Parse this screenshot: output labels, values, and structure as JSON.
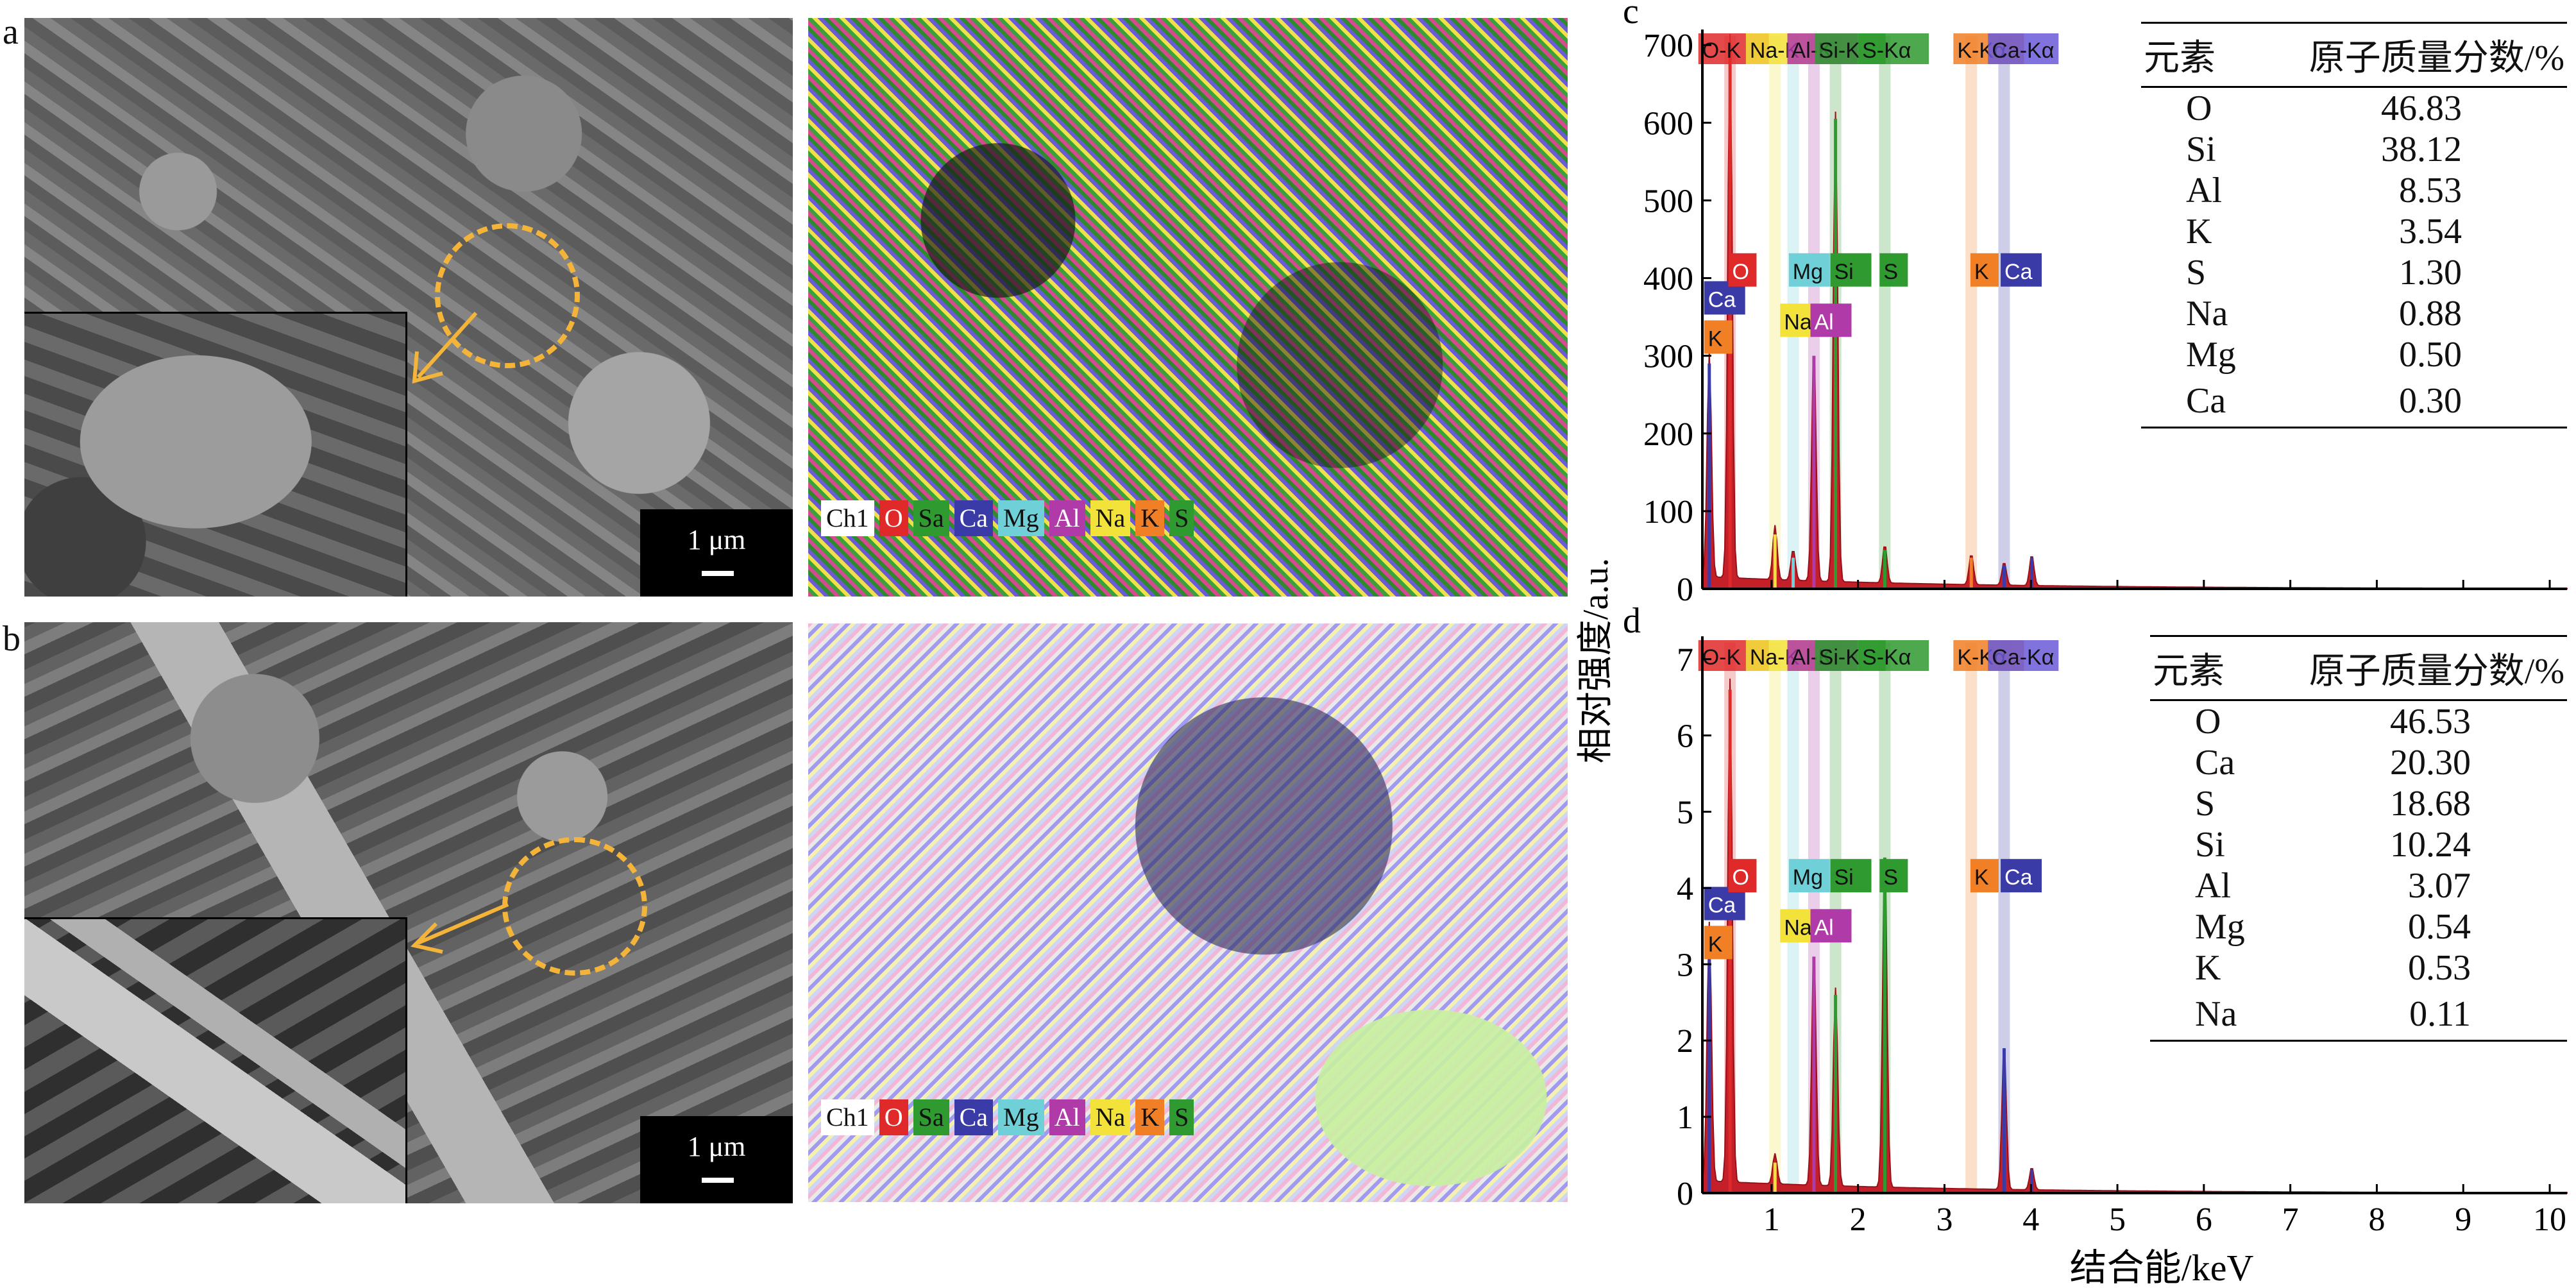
{
  "panels": {
    "a": "a",
    "b": "b",
    "c": "c",
    "d": "d"
  },
  "scale": "1 μm",
  "eds_legend": {
    "items": [
      {
        "label": "Ch1",
        "color": "#ffffff",
        "text": "#111111"
      },
      {
        "label": "O",
        "color": "#e02a2a",
        "text": "#ffffff"
      },
      {
        "label": "Sa",
        "color": "#2f9a2f",
        "text": "#111111"
      },
      {
        "label": "Ca",
        "color": "#3b3ba8",
        "text": "#ffffff"
      },
      {
        "label": "Mg",
        "color": "#6fd0d8",
        "text": "#111111"
      },
      {
        "label": "Al",
        "color": "#b03aa8",
        "text": "#ffffff"
      },
      {
        "label": "Na",
        "color": "#f2e23a",
        "text": "#111111"
      },
      {
        "label": "K",
        "color": "#f07f26",
        "text": "#111111"
      },
      {
        "label": "S",
        "color": "#2f9a2f",
        "text": "#111111"
      }
    ]
  },
  "chart_data": [
    {
      "type": "line",
      "panel": "c",
      "xlabel": "结合能/keV",
      "ylabel": "相对强度/a.u.",
      "xlim": [
        0.2,
        10.2
      ],
      "ylim": [
        0,
        720
      ],
      "yticks": [
        0,
        100,
        200,
        300,
        400,
        500,
        600,
        700
      ],
      "xticks": [
        1,
        2,
        3,
        4,
        5,
        6,
        7,
        8,
        9,
        10
      ],
      "peaks": [
        {
          "x": 0.28,
          "y": 290,
          "color": "#3b3ba8"
        },
        {
          "x": 0.52,
          "y": 700,
          "color": "#e02a2a"
        },
        {
          "x": 1.04,
          "y": 70,
          "color": "#f2e23a"
        },
        {
          "x": 1.25,
          "y": 40,
          "color": "#6fd0d8"
        },
        {
          "x": 1.49,
          "y": 300,
          "color": "#b03aa8"
        },
        {
          "x": 1.74,
          "y": 605,
          "color": "#2f9a2f"
        },
        {
          "x": 2.31,
          "y": 50,
          "color": "#2f9a2f"
        },
        {
          "x": 3.31,
          "y": 40,
          "color": "#f07f26"
        },
        {
          "x": 3.69,
          "y": 30,
          "color": "#3b3ba8"
        },
        {
          "x": 4.01,
          "y": 40,
          "color": "#3b3ba8"
        }
      ],
      "top_labels": [
        "O-K",
        "Na-K",
        "Al-K",
        "Si-K",
        "S-Kα",
        "K-Kα",
        "Ca-Kα"
      ],
      "mid_labels": [
        {
          "label": "K",
          "color": "#f07f26"
        },
        {
          "label": "Ca",
          "color": "#3b3ba8"
        },
        {
          "label": "Na",
          "color": "#f2e23a"
        },
        {
          "label": "Al",
          "color": "#b03aa8"
        },
        {
          "label": "O",
          "color": "#e02a2a"
        },
        {
          "label": "Mg",
          "color": "#6fd0d8"
        },
        {
          "label": "Si",
          "color": "#2f9a2f"
        },
        {
          "label": "S",
          "color": "#2f9a2f"
        },
        {
          "label": "K",
          "color": "#f07f26"
        },
        {
          "label": "Ca",
          "color": "#3b3ba8"
        }
      ],
      "table": {
        "header": [
          "元素",
          "原子质量分数/%"
        ],
        "rows": [
          [
            "O",
            "46.83"
          ],
          [
            "Si",
            "38.12"
          ],
          [
            "Al",
            "8.53"
          ],
          [
            "K",
            "3.54"
          ],
          [
            "S",
            "1.30"
          ],
          [
            "Na",
            "0.88"
          ],
          [
            "Mg",
            "0.50"
          ],
          [
            "Ca",
            "0.30"
          ]
        ]
      }
    },
    {
      "type": "line",
      "panel": "d",
      "xlabel": "结合能/keV",
      "ylabel": "相对强度/a.u.",
      "xlim": [
        0.2,
        10.2
      ],
      "ylim": [
        0,
        7.3
      ],
      "yticks": [
        0,
        1,
        2,
        3,
        4,
        5,
        6,
        7
      ],
      "xticks": [
        1,
        2,
        3,
        4,
        5,
        6,
        7,
        8,
        9,
        10
      ],
      "peaks": [
        {
          "x": 0.28,
          "y": 3.4,
          "color": "#3b3ba8"
        },
        {
          "x": 0.52,
          "y": 6.6,
          "color": "#e02a2a"
        },
        {
          "x": 1.04,
          "y": 0.4,
          "color": "#f2e23a"
        },
        {
          "x": 1.49,
          "y": 3.1,
          "color": "#b03aa8"
        },
        {
          "x": 1.74,
          "y": 2.6,
          "color": "#2f9a2f"
        },
        {
          "x": 2.31,
          "y": 4.4,
          "color": "#2f9a2f"
        },
        {
          "x": 3.69,
          "y": 1.9,
          "color": "#3b3ba8"
        },
        {
          "x": 4.01,
          "y": 0.3,
          "color": "#3b3ba8"
        }
      ],
      "top_labels": [
        "O-K",
        "Na-K",
        "Al-K",
        "Si-K",
        "S-Kα",
        "K-Kα",
        "Ca-Kα"
      ],
      "mid_labels": [
        {
          "label": "K",
          "color": "#f07f26"
        },
        {
          "label": "Ca",
          "color": "#3b3ba8"
        },
        {
          "label": "Na",
          "color": "#f2e23a"
        },
        {
          "label": "Al",
          "color": "#b03aa8"
        },
        {
          "label": "O",
          "color": "#e02a2a"
        },
        {
          "label": "Mg",
          "color": "#6fd0d8"
        },
        {
          "label": "Si",
          "color": "#2f9a2f"
        },
        {
          "label": "S",
          "color": "#2f9a2f"
        },
        {
          "label": "K",
          "color": "#f07f26"
        },
        {
          "label": "Ca",
          "color": "#3b3ba8"
        }
      ],
      "table": {
        "header": [
          "元素",
          "原子质量分数/%"
        ],
        "rows": [
          [
            "O",
            "46.53"
          ],
          [
            "Ca",
            "20.30"
          ],
          [
            "S",
            "18.68"
          ],
          [
            "Si",
            "10.24"
          ],
          [
            "Al",
            "3.07"
          ],
          [
            "Mg",
            "0.54"
          ],
          [
            "K",
            "0.53"
          ],
          [
            "Na",
            "0.11"
          ]
        ]
      }
    }
  ]
}
